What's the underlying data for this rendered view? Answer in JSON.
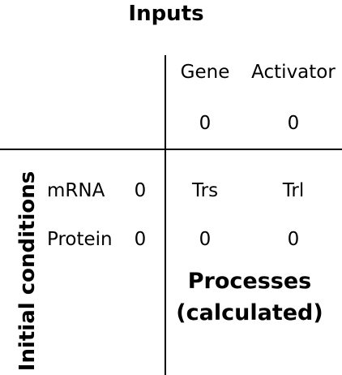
{
  "inputs_title": "Inputs",
  "columns": [
    {
      "label": "Gene",
      "value": "0"
    },
    {
      "label": "Activator",
      "value": "0"
    }
  ],
  "initial_conditions_title": "Initial conditions",
  "rows": [
    {
      "label": "mRNA",
      "value": "0",
      "process": "Trs"
    },
    {
      "label": "Protein",
      "value": "0",
      "process": "0"
    }
  ],
  "process_row_2": {
    "trs": "0",
    "trl": "0"
  },
  "process_header_2": "Trl",
  "processes_title_line1": "Processes",
  "processes_title_line2": "(calculated)"
}
